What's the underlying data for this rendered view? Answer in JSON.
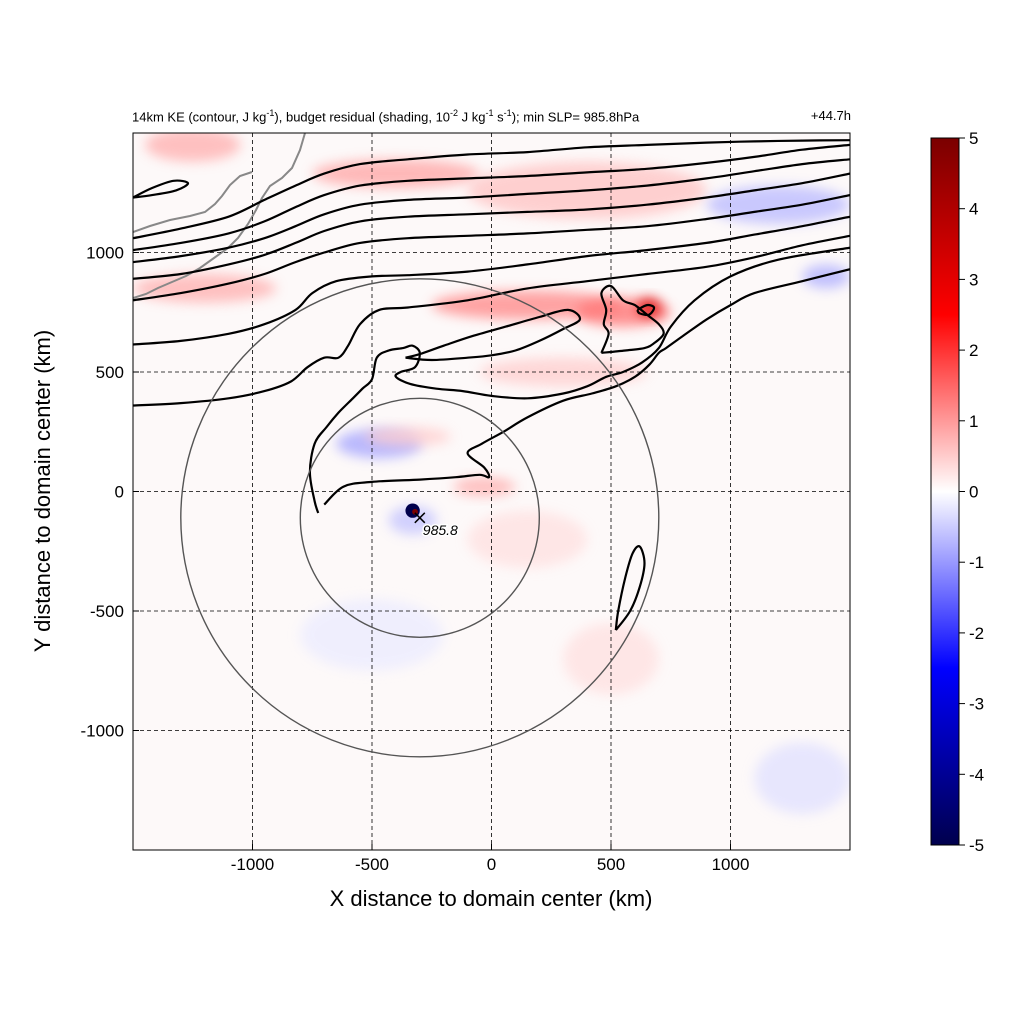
{
  "chart_data": {
    "type": "contour",
    "title_left_parts": {
      "a": "14km KE (contour, J kg",
      "a_exp": "-1",
      "b": "), budget residual (shading, 10",
      "b_exp": "-2",
      "c": " J kg",
      "c_exp": "-1",
      "d": " s",
      "d_exp": "-1",
      "e": "); min SLP= 985.8hPa"
    },
    "title_right": "+44.7h",
    "xlabel": "X distance to domain center (km)",
    "ylabel": "Y distance to domain center (km)",
    "xlim": [
      -1500,
      1500
    ],
    "ylim": [
      -1500,
      1500
    ],
    "x_ticks": [
      -1000,
      -500,
      0,
      500,
      1000
    ],
    "y_ticks": [
      -1000,
      -500,
      0,
      500,
      1000
    ],
    "x_tick_labels": [
      "-1000",
      "-500",
      "0",
      "500",
      "1000"
    ],
    "y_tick_labels": [
      "-1000",
      "-500",
      "0",
      "500",
      "1000"
    ],
    "grid": "dashed",
    "colorbar": {
      "min": -5,
      "max": 5,
      "ticks": [
        5,
        4,
        3,
        2,
        1,
        0,
        -1,
        -2,
        -3,
        -4,
        -5
      ],
      "tick_labels": [
        "5",
        "4",
        "3",
        "2",
        "1",
        "0",
        "-1",
        "-2",
        "-3",
        "-4",
        "-5"
      ],
      "colors": [
        "#00004d",
        "#0000ff",
        "#ffffff",
        "#ff0000",
        "#7a0000"
      ]
    },
    "storm_center": {
      "x": -300,
      "y": -110,
      "label": "985.8"
    },
    "range_circles": [
      {
        "center_x": -300,
        "center_y": -110,
        "radius_km": 500
      },
      {
        "center_x": -300,
        "center_y": -110,
        "radius_km": 1000
      }
    ],
    "ke_contours": [
      [
        [
          -1500,
          1060
        ],
        [
          -1300,
          1100
        ],
        [
          -1100,
          1150
        ],
        [
          -950,
          1220
        ],
        [
          -820,
          1280
        ],
        [
          -700,
          1330
        ],
        [
          -550,
          1370
        ],
        [
          -350,
          1390
        ],
        [
          -100,
          1410
        ],
        [
          150,
          1420
        ],
        [
          400,
          1440
        ],
        [
          650,
          1450
        ],
        [
          900,
          1460
        ],
        [
          1100,
          1465
        ],
        [
          1300,
          1468
        ],
        [
          1500,
          1470
        ]
      ],
      [
        [
          -1500,
          1010
        ],
        [
          -1300,
          1040
        ],
        [
          -1100,
          1080
        ],
        [
          -950,
          1130
        ],
        [
          -820,
          1190
        ],
        [
          -700,
          1240
        ],
        [
          -550,
          1280
        ],
        [
          -350,
          1300
        ],
        [
          -100,
          1310
        ],
        [
          150,
          1320
        ],
        [
          400,
          1335
        ],
        [
          650,
          1350
        ],
        [
          900,
          1375
        ],
        [
          1100,
          1400
        ],
        [
          1300,
          1430
        ],
        [
          1500,
          1450
        ]
      ],
      [
        [
          -1500,
          960
        ],
        [
          -1300,
          985
        ],
        [
          -1100,
          1020
        ],
        [
          -950,
          1060
        ],
        [
          -820,
          1110
        ],
        [
          -700,
          1160
        ],
        [
          -550,
          1200
        ],
        [
          -350,
          1220
        ],
        [
          -100,
          1230
        ],
        [
          150,
          1245
        ],
        [
          400,
          1260
        ],
        [
          650,
          1280
        ],
        [
          900,
          1310
        ],
        [
          1100,
          1340
        ],
        [
          1300,
          1370
        ],
        [
          1500,
          1390
        ]
      ],
      [
        [
          -1500,
          890
        ],
        [
          -1300,
          910
        ],
        [
          -1100,
          950
        ],
        [
          -950,
          990
        ],
        [
          -820,
          1040
        ],
        [
          -700,
          1090
        ],
        [
          -550,
          1130
        ],
        [
          -350,
          1150
        ],
        [
          -100,
          1160
        ],
        [
          150,
          1170
        ],
        [
          400,
          1180
        ],
        [
          650,
          1200
        ],
        [
          900,
          1230
        ],
        [
          1100,
          1260
        ],
        [
          1300,
          1290
        ],
        [
          1500,
          1330
        ]
      ],
      [
        [
          -1500,
          800
        ],
        [
          -1300,
          830
        ],
        [
          -1100,
          870
        ],
        [
          -950,
          910
        ],
        [
          -820,
          960
        ],
        [
          -700,
          1000
        ],
        [
          -550,
          1040
        ],
        [
          -350,
          1060
        ],
        [
          -100,
          1070
        ],
        [
          150,
          1080
        ],
        [
          400,
          1095
        ],
        [
          650,
          1110
        ],
        [
          900,
          1140
        ],
        [
          1100,
          1170
        ],
        [
          1300,
          1200
        ],
        [
          1500,
          1240
        ]
      ],
      [
        [
          -1500,
          615
        ],
        [
          -1300,
          630
        ],
        [
          -1100,
          660
        ],
        [
          -950,
          700
        ],
        [
          -820,
          760
        ],
        [
          -750,
          830
        ],
        [
          -650,
          880
        ],
        [
          -500,
          900
        ],
        [
          -350,
          905
        ],
        [
          -100,
          920
        ],
        [
          150,
          950
        ],
        [
          400,
          985
        ],
        [
          650,
          1010
        ],
        [
          900,
          1040
        ],
        [
          1100,
          1075
        ],
        [
          1300,
          1110
        ],
        [
          1500,
          1150
        ]
      ],
      [
        [
          -1500,
          360
        ],
        [
          -1300,
          370
        ],
        [
          -1100,
          390
        ],
        [
          -950,
          420
        ],
        [
          -840,
          460
        ],
        [
          -770,
          520
        ],
        [
          -700,
          560
        ],
        [
          -640,
          560
        ],
        [
          -600,
          610
        ],
        [
          -550,
          700
        ],
        [
          -470,
          760
        ],
        [
          -350,
          770
        ],
        [
          -100,
          800
        ],
        [
          150,
          850
        ],
        [
          400,
          880
        ],
        [
          650,
          910
        ],
        [
          900,
          940
        ],
        [
          1100,
          980
        ],
        [
          1300,
          1030
        ],
        [
          1500,
          1070
        ]
      ],
      [
        [
          -725,
          -90
        ],
        [
          -740,
          -40
        ],
        [
          -760,
          80
        ],
        [
          -740,
          200
        ],
        [
          -690,
          270
        ],
        [
          -640,
          330
        ],
        [
          -580,
          390
        ],
        [
          -540,
          430
        ],
        [
          -500,
          470
        ],
        [
          -480,
          560
        ],
        [
          -430,
          590
        ],
        [
          -370,
          600
        ],
        [
          -330,
          610
        ],
        [
          -300,
          580
        ],
        [
          -320,
          520
        ],
        [
          -380,
          500
        ],
        [
          -400,
          480
        ],
        [
          -340,
          450
        ],
        [
          -230,
          430
        ],
        [
          -120,
          420
        ],
        [
          0,
          400
        ],
        [
          150,
          390
        ],
        [
          300,
          410
        ],
        [
          400,
          440
        ],
        [
          480,
          480
        ],
        [
          550,
          500
        ],
        [
          630,
          540
        ],
        [
          700,
          600
        ],
        [
          750,
          690
        ],
        [
          850,
          800
        ],
        [
          1000,
          900
        ],
        [
          1200,
          970
        ],
        [
          1500,
          1020
        ]
      ],
      [
        [
          -700,
          -55
        ],
        [
          -620,
          20
        ],
        [
          -500,
          40
        ],
        [
          -300,
          50
        ],
        [
          -150,
          60
        ],
        [
          -50,
          70
        ],
        [
          -10,
          60
        ],
        [
          -30,
          100
        ],
        [
          -100,
          160
        ],
        [
          -40,
          200
        ],
        [
          50,
          250
        ],
        [
          150,
          310
        ],
        [
          300,
          380
        ],
        [
          420,
          410
        ],
        [
          520,
          440
        ],
        [
          600,
          480
        ],
        [
          660,
          530
        ],
        [
          700,
          580
        ],
        [
          730,
          600
        ],
        [
          800,
          650
        ],
        [
          900,
          720
        ],
        [
          1000,
          780
        ],
        [
          1100,
          830
        ],
        [
          1300,
          880
        ],
        [
          1500,
          930
        ]
      ],
      [
        [
          -360,
          560
        ],
        [
          -300,
          575
        ],
        [
          -200,
          610
        ],
        [
          -80,
          650
        ],
        [
          60,
          690
        ],
        [
          200,
          730
        ],
        [
          320,
          760
        ],
        [
          370,
          720
        ],
        [
          300,
          680
        ],
        [
          200,
          630
        ],
        [
          100,
          590
        ],
        [
          0,
          570
        ],
        [
          -100,
          560
        ],
        [
          -250,
          550
        ],
        [
          -360,
          560
        ]
      ],
      [
        [
          460,
          580
        ],
        [
          490,
          660
        ],
        [
          470,
          700
        ],
        [
          480,
          760
        ],
        [
          460,
          830
        ],
        [
          500,
          860
        ],
        [
          550,
          800
        ],
        [
          600,
          780
        ],
        [
          650,
          740
        ],
        [
          700,
          700
        ],
        [
          720,
          660
        ],
        [
          680,
          620
        ],
        [
          640,
          600
        ],
        [
          560,
          590
        ],
        [
          460,
          580
        ]
      ],
      [
        [
          520,
          -580
        ],
        [
          530,
          -500
        ],
        [
          560,
          -360
        ],
        [
          590,
          -260
        ],
        [
          620,
          -230
        ],
        [
          640,
          -300
        ],
        [
          620,
          -400
        ],
        [
          580,
          -500
        ],
        [
          520,
          -580
        ]
      ],
      [
        [
          610,
          760
        ],
        [
          650,
          780
        ],
        [
          680,
          770
        ],
        [
          660,
          740
        ],
        [
          620,
          745
        ],
        [
          610,
          760
        ]
      ],
      [
        [
          -1500,
          1230
        ],
        [
          -1420,
          1270
        ],
        [
          -1330,
          1300
        ],
        [
          -1270,
          1290
        ],
        [
          -1320,
          1260
        ],
        [
          -1420,
          1240
        ],
        [
          -1500,
          1230
        ]
      ]
    ],
    "shading_features": [
      {
        "x": -1250,
        "y": 1450,
        "rx": 200,
        "ry": 70,
        "value": 0.8
      },
      {
        "x": -400,
        "y": 1330,
        "rx": 350,
        "ry": 60,
        "value": 0.9
      },
      {
        "x": 400,
        "y": 1260,
        "rx": 500,
        "ry": 120,
        "value": 0.6
      },
      {
        "x": 1200,
        "y": 1200,
        "rx": 300,
        "ry": 80,
        "value": -0.7
      },
      {
        "x": -1200,
        "y": 850,
        "rx": 300,
        "ry": 60,
        "value": 0.8
      },
      {
        "x": 150,
        "y": 780,
        "rx": 400,
        "ry": 60,
        "value": 1.2
      },
      {
        "x": 550,
        "y": 750,
        "rx": 200,
        "ry": 60,
        "value": 1.4
      },
      {
        "x": 660,
        "y": 770,
        "rx": 50,
        "ry": 40,
        "value": 3.2
      },
      {
        "x": 300,
        "y": 500,
        "rx": 350,
        "ry": 60,
        "value": 0.5
      },
      {
        "x": -30,
        "y": 20,
        "rx": 130,
        "ry": 40,
        "value": 0.8
      },
      {
        "x": -470,
        "y": 200,
        "rx": 180,
        "ry": 60,
        "value": -0.9
      },
      {
        "x": -350,
        "y": 230,
        "rx": 180,
        "ry": 40,
        "value": 0.5
      },
      {
        "x": -330,
        "y": -120,
        "rx": 100,
        "ry": 60,
        "value": -0.6
      },
      {
        "x": 150,
        "y": -200,
        "rx": 250,
        "ry": 120,
        "value": 0.3
      },
      {
        "x": -500,
        "y": -600,
        "rx": 300,
        "ry": 150,
        "value": -0.2
      },
      {
        "x": 500,
        "y": -700,
        "rx": 200,
        "ry": 150,
        "value": 0.3
      },
      {
        "x": 1300,
        "y": -1200,
        "rx": 200,
        "ry": 150,
        "value": -0.3
      },
      {
        "x": 1400,
        "y": 900,
        "rx": 100,
        "ry": 50,
        "value": -0.8
      }
    ],
    "storm_core": [
      {
        "x": -330,
        "y": -80,
        "r": 30,
        "value": -5
      },
      {
        "x": -320,
        "y": -85,
        "r": 12,
        "value": 5
      }
    ]
  }
}
